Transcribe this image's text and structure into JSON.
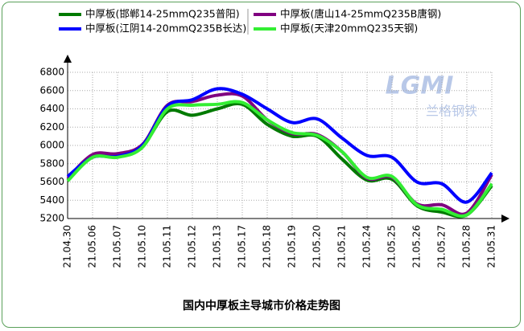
{
  "chart_data": {
    "type": "line",
    "title": "国内中厚板主导城市价格走势图",
    "watermark": "LGMI",
    "watermark_sub": "兰格钢铁",
    "categories": [
      "21.04.30",
      "21.05.06",
      "21.05.07",
      "21.05.10",
      "21.05.11",
      "21.05.12",
      "21.05.13",
      "21.05.17",
      "21.05.18",
      "21.05.19",
      "21.05.20",
      "21.05.21",
      "21.05.24",
      "21.05.25",
      "21.05.26",
      "21.05.27",
      "21.05.28",
      "21.05.31"
    ],
    "series": [
      {
        "name": "中厚板(邯郸14-25mmQ235普阳)",
        "color": "#007a00",
        "values": [
          5620,
          5880,
          5890,
          5990,
          6370,
          6330,
          6400,
          6450,
          6230,
          6100,
          6100,
          5850,
          5620,
          5630,
          5340,
          5270,
          5240,
          5560
        ]
      },
      {
        "name": "中厚板(唐山14-25mmQ235B唐钢)",
        "color": "#800080",
        "values": [
          5640,
          5900,
          5910,
          6010,
          6440,
          6480,
          6550,
          6540,
          6280,
          6130,
          6120,
          5930,
          5640,
          5650,
          5360,
          5350,
          5260,
          5680
        ]
      },
      {
        "name": "中厚板(江阴14-20mmQ235B长达)",
        "color": "#0000ff",
        "values": [
          5660,
          5870,
          5880,
          6000,
          6430,
          6500,
          6620,
          6560,
          6400,
          6250,
          6290,
          6080,
          5890,
          5870,
          5600,
          5580,
          5380,
          5700
        ]
      },
      {
        "name": "中厚板(天津20mmQ235天钢)",
        "color": "#33ee33",
        "values": [
          5610,
          5870,
          5870,
          5980,
          6400,
          6440,
          6450,
          6470,
          6280,
          6140,
          6110,
          5930,
          5650,
          5660,
          5350,
          5300,
          5240,
          5580
        ]
      }
    ],
    "ylim": [
      5200,
      6800
    ],
    "yticks": [
      5200,
      5400,
      5600,
      5800,
      6000,
      6200,
      6400,
      6600,
      6800
    ],
    "grid": true
  }
}
